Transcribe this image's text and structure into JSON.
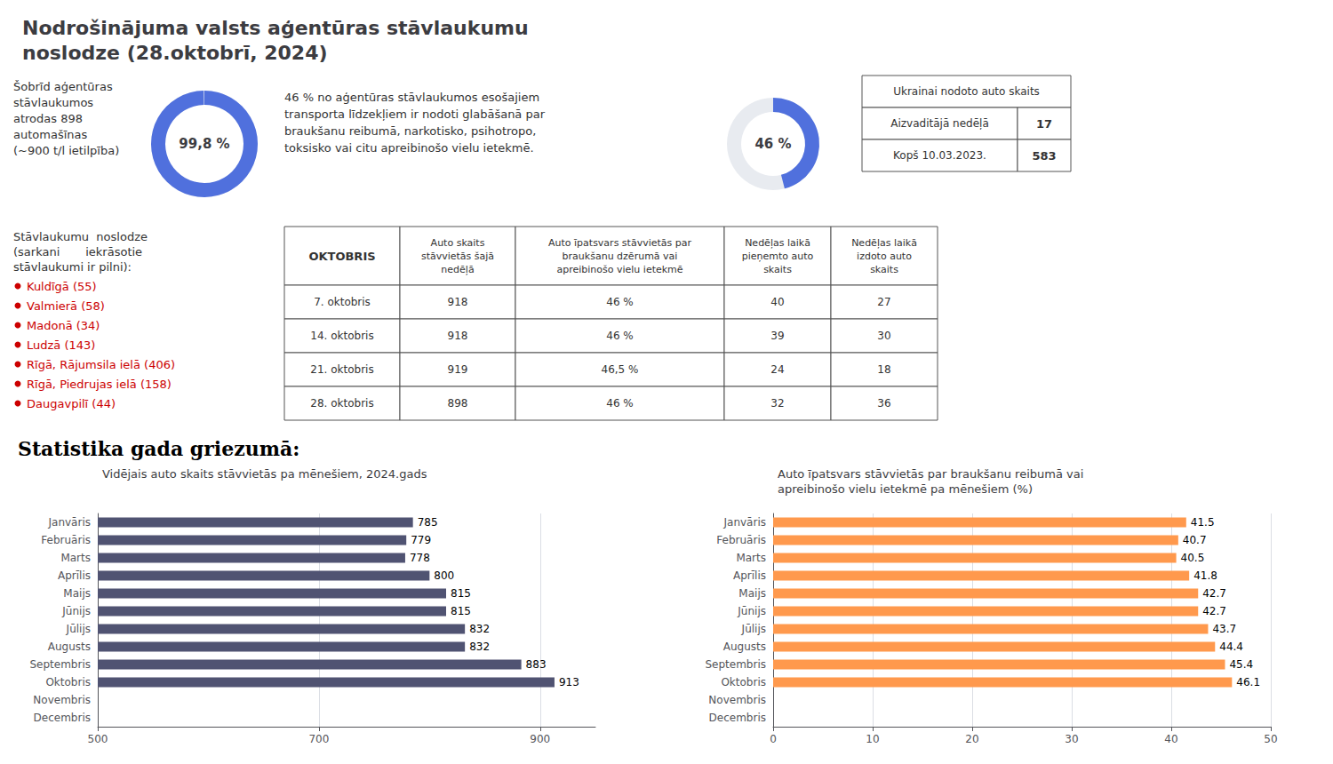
{
  "title": "Nodrošinājuma valsts aģentūras stāvlaukumu\nnoslodze (28.oktobrī, 2024)",
  "annotations": [
    "Šobrīd aģentūras\nstāvlaukumos\natrodas 898\nautomašīnas\n(~900 t/l ietilpība)",
    "46 % no aģentūras stāvlaukumos esošajiem\ntransporta līdzekļiem ir nodoti glabāšanā par\nbraukšanu reibumā, narkotisko, psihotropo,\ntoksisko vai citu apreibinošo vielu ietekmē.",
    "Stāvlaukumu  noslodze\n(sarkani       iekrāsotie\nstāvlaukumi ir pilni):",
    "Statistika gada griezumā:"
  ],
  "bullets": {
    "color": "#cc0000",
    "items": [
      "Kuldīgā (55)",
      "Valmierā (58)",
      "Madonā (34)",
      "Ludzā (143)",
      "Rīgā, Rājumsila ielā (406)",
      "Rīgā, Piedrujas ielā (158)",
      "Daugavpilī (44)"
    ]
  },
  "tables": [
    {
      "title": "Ukrainai nodoto auto skaits",
      "rows": [
        [
          "Aizvaditājā nedēļā",
          "17"
        ],
        [
          "Kopš 10.03.2023.",
          "583"
        ]
      ]
    },
    {
      "header": [
        "OKTOBRIS",
        "Auto skaits\nstāvvietās šajā\nnedēļā",
        "Auto īpatsvars stāvvietās par\nbraukšanu dzērumā vai\napreibinošo vielu ietekmē",
        "Nedēļas laikā\npieņemto auto\nskaits",
        "Nedēļas laikā\nizdoto auto\nskaits"
      ],
      "rows": [
        [
          "7. oktobris",
          "918",
          "46 %",
          "40",
          "27"
        ],
        [
          "14. oktobris",
          "918",
          "46 %",
          "39",
          "30"
        ],
        [
          "21. oktobris",
          "919",
          "46,5 %",
          "24",
          "18"
        ],
        [
          "28. oktobris",
          "898",
          "46 %",
          "32",
          "36"
        ]
      ]
    }
  ],
  "chart_data": [
    {
      "type": "gauge",
      "values": [
        99.8
      ],
      "value_labels": [
        "99,8 %"
      ],
      "ylim": [
        0,
        100
      ],
      "tick_labels": false
    },
    {
      "type": "gauge",
      "values": [
        46
      ],
      "value_labels": [
        "46 %"
      ],
      "ylim": [
        0,
        100
      ],
      "tick_labels": false
    },
    {
      "type": "bar",
      "orientation": "horizontal",
      "title": "Vidējais auto skaits stāvvietās pa mēnešiem, 2024.gads",
      "categories": [
        "Janvāris",
        "Februāris",
        "Marts",
        "Aprīlis",
        "Maijs",
        "Jūnijs",
        "Jūlijs",
        "Augusts",
        "Septembris",
        "Oktobris",
        "Novembris",
        "Decembris"
      ],
      "values": [
        785,
        779,
        778,
        800,
        815,
        815,
        832,
        832,
        883,
        913,
        null,
        null
      ],
      "xlim": [
        500,
        950
      ],
      "xticks": [
        500,
        700,
        900
      ],
      "grid": true,
      "data_labels": true
    },
    {
      "type": "bar",
      "orientation": "horizontal",
      "title": "Auto īpatsvars stāvvietās par braukšanu reibumā vai\napreibinošo vielu ietekmē pa mēnešiem (%)",
      "categories": [
        "Janvāris",
        "Februāris",
        "Marts",
        "Aprīlis",
        "Maijs",
        "Jūnijs",
        "Jūlijs",
        "Augusts",
        "Septembris",
        "Oktobris",
        "Novembris",
        "Decembris"
      ],
      "values": [
        41.5,
        40.7,
        40.5,
        41.8,
        42.7,
        42.7,
        43.7,
        44.4,
        45.4,
        46.1,
        null,
        null
      ],
      "xlim": [
        0,
        50
      ],
      "xticks": [
        0,
        10,
        20,
        30,
        40,
        50
      ],
      "grid": true,
      "data_labels": true
    }
  ]
}
